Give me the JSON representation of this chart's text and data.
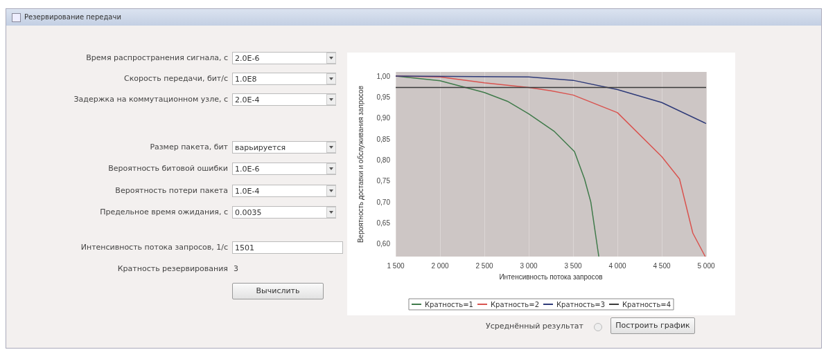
{
  "chart_data": [
    {
      "type": "other",
      "title": "Резервирование передачи",
      "annotations": [
        "Время распространения сигнала, с",
        "2.0E-6",
        "Скорость передачи, бит/с",
        "1.0E8",
        "Задержка на коммутационном узле, с",
        "2.0E-4",
        "Размер пакета, бит",
        "варьируется",
        "Вероятность битовой ошибки",
        "1.0E-6",
        "Вероятность потери пакета",
        "1.0E-4",
        "Предельное время ожидания, с",
        "0.0035",
        "Интенсивность потока запросов, 1/с",
        "1501",
        "Кратность резервирования",
        "3",
        "Вычислить"
      ]
    },
    {
      "type": "line",
      "xlabel": "Интенсивность потока запросов",
      "ylabel": "Вероятность доставки и обслуживания запросов",
      "xlim": [
        1500,
        5000
      ],
      "xticks": [
        {
          "value": 1500,
          "label": "1 500"
        },
        {
          "value": 2000,
          "label": "2 000"
        },
        {
          "value": 2500,
          "label": "2 500"
        },
        {
          "value": 3000,
          "label": "3 000"
        },
        {
          "value": 3500,
          "label": "3 500"
        },
        {
          "value": 4000,
          "label": "4 000"
        },
        {
          "value": 4500,
          "label": "4 500"
        },
        {
          "value": 5000,
          "label": "5 000"
        }
      ],
      "ylim": [
        0.57,
        1.01
      ],
      "yticks": [
        {
          "value": 0.6,
          "label": "0,60"
        },
        {
          "value": 0.65,
          "label": "0,65"
        },
        {
          "value": 0.7,
          "label": "0,70"
        },
        {
          "value": 0.75,
          "label": "0,75"
        },
        {
          "value": 0.8,
          "label": "0,80"
        },
        {
          "value": 0.85,
          "label": "0,85"
        },
        {
          "value": 0.9,
          "label": "0,90"
        },
        {
          "value": 0.95,
          "label": "0,95"
        },
        {
          "value": 1.0,
          "label": "1,00"
        }
      ],
      "grid": "x",
      "legend": "bottom",
      "marker": "none",
      "line_style": "solid",
      "annotations": [
        "Усреднённый результат",
        "Построить график"
      ],
      "series": [
        {
          "name": "Кратность=1",
          "color": "#3f7a4a",
          "x": [
            1500,
            2000,
            2250,
            2500,
            2760,
            3000,
            3290,
            3516,
            3629,
            3700,
            3790
          ],
          "values": [
            1.0,
            0.989,
            0.975,
            0.961,
            0.94,
            0.91,
            0.868,
            0.82,
            0.755,
            0.7,
            0.57
          ]
        },
        {
          "name": "Кратность=2",
          "color": "#d9534f",
          "x": [
            1500,
            2000,
            2500,
            3000,
            3250,
            3500,
            4000,
            4500,
            4700,
            4850,
            4990
          ],
          "values": [
            1.0,
            0.998,
            0.984,
            0.973,
            0.965,
            0.955,
            0.913,
            0.808,
            0.755,
            0.626,
            0.57
          ]
        },
        {
          "name": "Кратность=3",
          "color": "#2e3a78",
          "x": [
            1500,
            3000,
            3500,
            4000,
            4500,
            5000
          ],
          "values": [
            1.0,
            0.998,
            0.99,
            0.968,
            0.937,
            0.887
          ]
        },
        {
          "name": "Кратность=4",
          "color": "#3a3a3a",
          "x": [
            1500,
            5000
          ],
          "values": [
            0.973,
            0.973
          ]
        }
      ]
    }
  ]
}
